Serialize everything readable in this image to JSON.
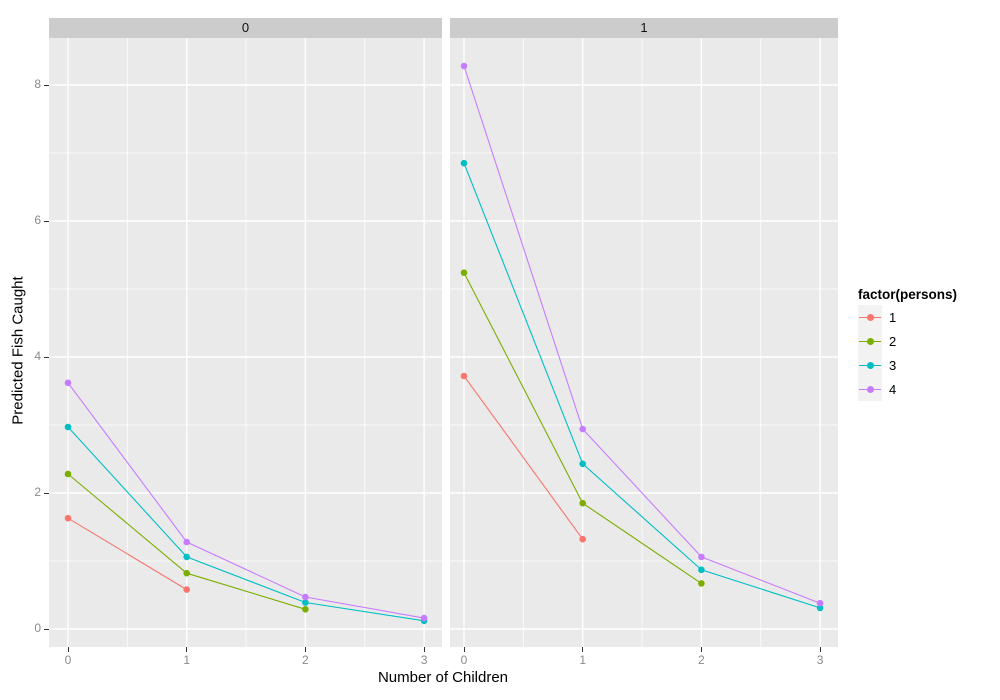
{
  "figure": {
    "y_axis_title": "Predicted Fish Caught",
    "x_axis_title": "Number of Children",
    "x_ticks": [
      "0",
      "1",
      "2",
      "3"
    ],
    "y_ticks": [
      "0",
      "2",
      "4",
      "6",
      "8"
    ]
  },
  "legend": {
    "title": "factor(persons)",
    "items": [
      {
        "label": "1",
        "color": "#F8766D"
      },
      {
        "label": "2",
        "color": "#7CAE00"
      },
      {
        "label": "3",
        "color": "#00BFC4"
      },
      {
        "label": "4",
        "color": "#C77CFF"
      }
    ]
  },
  "colors": {
    "panel_background": "#EAEAEA",
    "strip_background": "#CCCCCC",
    "gridline": "#FFFFFF",
    "tick_label": "#8A8A8A",
    "tick_mark": "#333333",
    "legend_key_background": "#F2F2F2"
  },
  "chart_data": {
    "type": "line",
    "title": "",
    "xlabel": "Number of Children",
    "ylabel": "Predicted Fish Caught",
    "legend_title": "factor(persons)",
    "legend_position": "right",
    "grid": true,
    "x_breaks": [
      0,
      1,
      2,
      3
    ],
    "y_breaks": [
      0,
      2,
      4,
      6,
      8
    ],
    "x_minor_breaks": [
      0.5,
      1.5,
      2.5
    ],
    "y_minor_breaks": [
      1,
      3,
      5,
      7
    ],
    "xlim": [
      -0.15,
      3.15
    ],
    "ylim": [
      -0.27,
      8.69
    ],
    "facets": [
      {
        "label": "0",
        "series": [
          {
            "name": "1",
            "color": "#F8766D",
            "points": [
              [
                0,
                1.63
              ],
              [
                1,
                0.58
              ]
            ]
          },
          {
            "name": "2",
            "color": "#7CAE00",
            "points": [
              [
                0,
                2.28
              ],
              [
                1,
                0.82
              ],
              [
                2,
                0.29
              ]
            ]
          },
          {
            "name": "3",
            "color": "#00BFC4",
            "points": [
              [
                0,
                2.97
              ],
              [
                1,
                1.06
              ],
              [
                2,
                0.39
              ],
              [
                3,
                0.12
              ]
            ]
          },
          {
            "name": "4",
            "color": "#C77CFF",
            "points": [
              [
                0,
                3.62
              ],
              [
                1,
                1.28
              ],
              [
                2,
                0.47
              ],
              [
                3,
                0.16
              ]
            ]
          }
        ]
      },
      {
        "label": "1",
        "series": [
          {
            "name": "1",
            "color": "#F8766D",
            "points": [
              [
                0,
                3.72
              ],
              [
                1,
                1.32
              ]
            ]
          },
          {
            "name": "2",
            "color": "#7CAE00",
            "points": [
              [
                0,
                5.24
              ],
              [
                1,
                1.85
              ],
              [
                2,
                0.67
              ]
            ]
          },
          {
            "name": "3",
            "color": "#00BFC4",
            "points": [
              [
                0,
                6.85
              ],
              [
                1,
                2.43
              ],
              [
                2,
                0.87
              ],
              [
                3,
                0.31
              ]
            ]
          },
          {
            "name": "4",
            "color": "#C77CFF",
            "points": [
              [
                0,
                8.28
              ],
              [
                1,
                2.94
              ],
              [
                2,
                1.06
              ],
              [
                3,
                0.38
              ]
            ]
          }
        ]
      }
    ]
  }
}
